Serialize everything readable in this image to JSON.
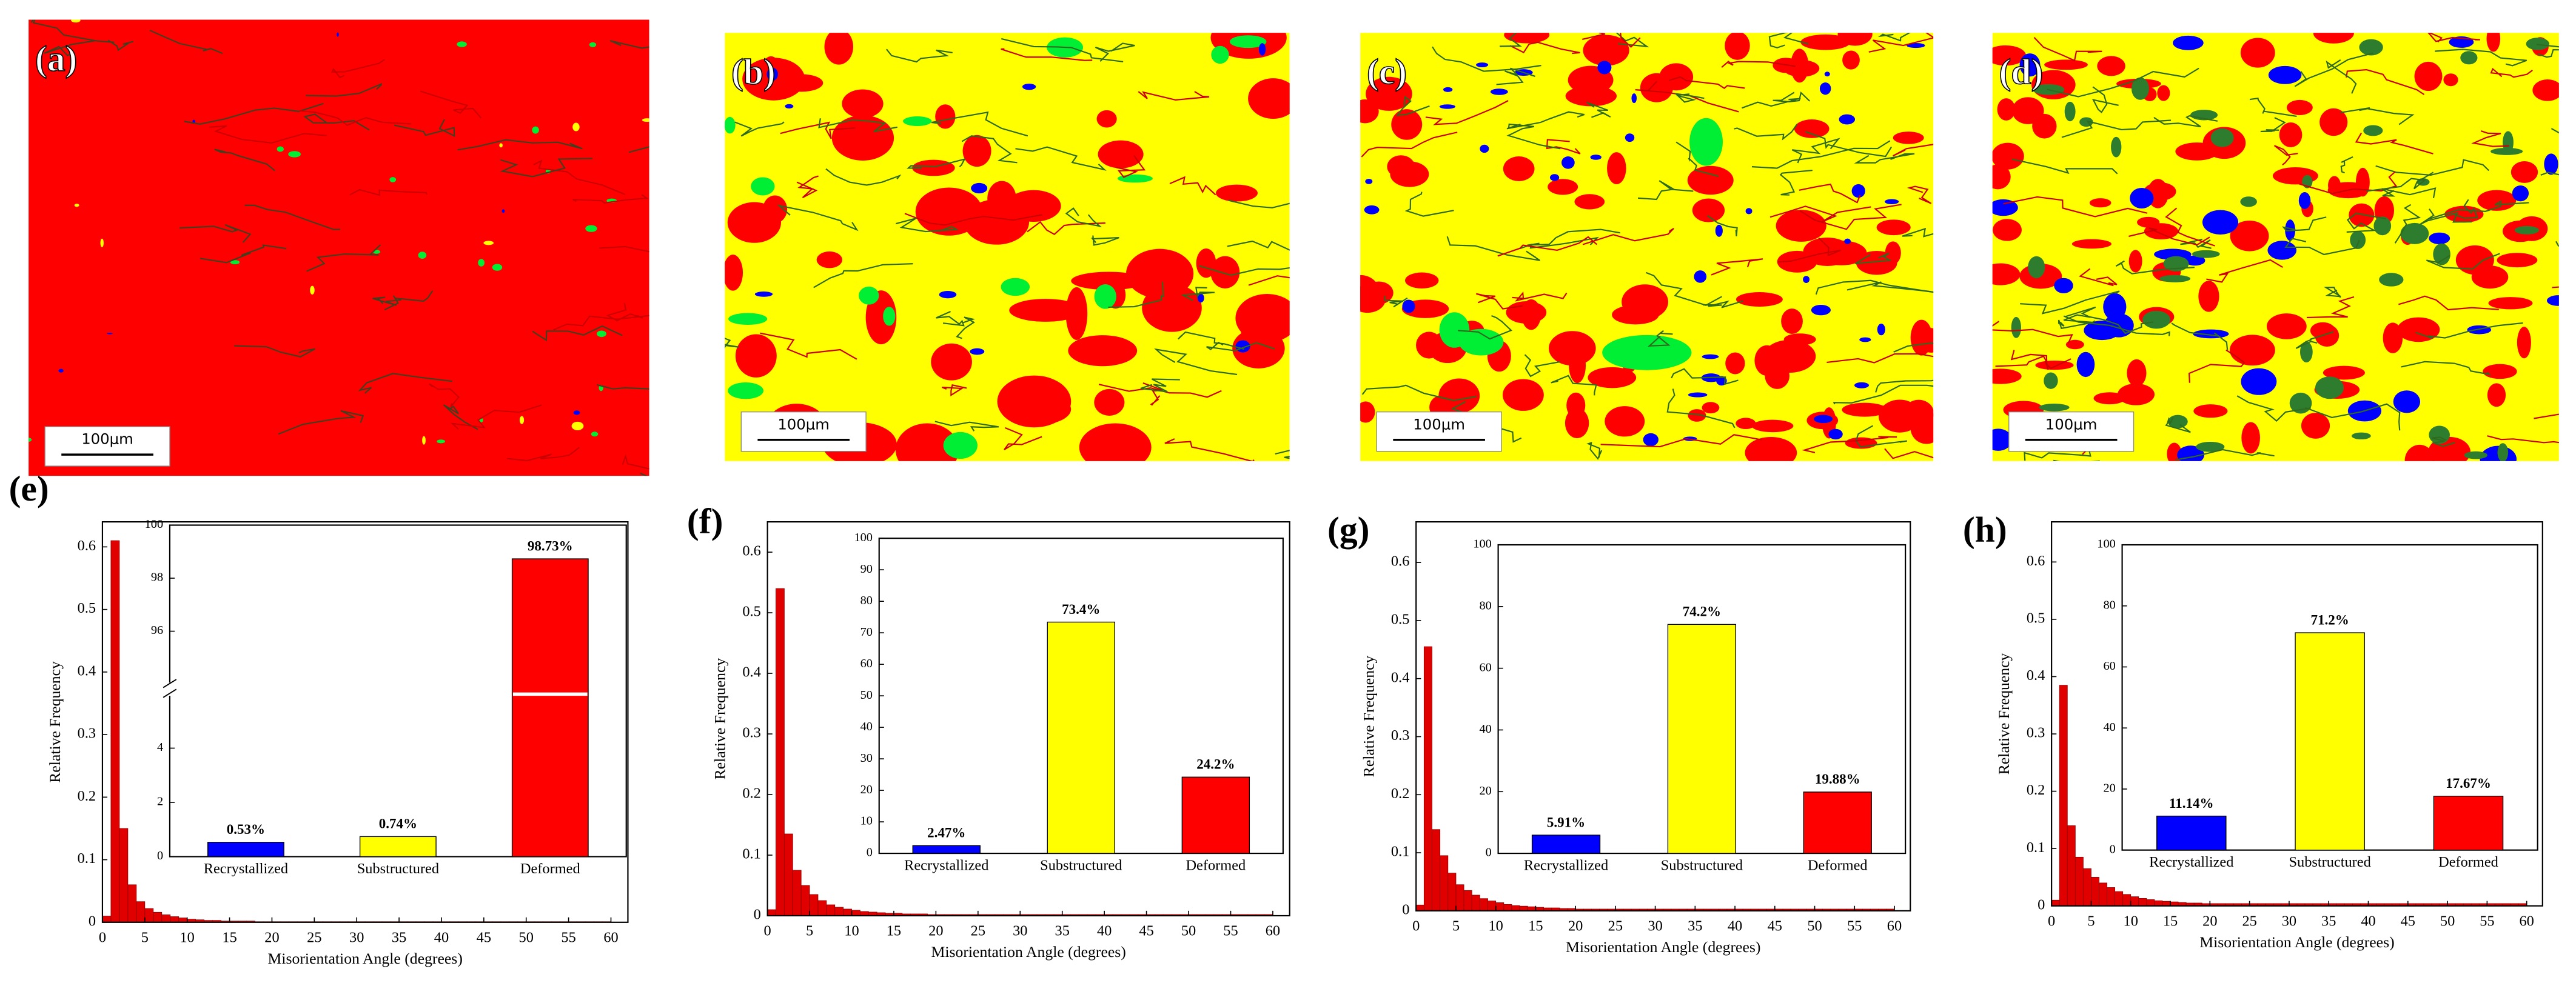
{
  "maps": [
    {
      "label": "(a)",
      "scale_bar": "100μm"
    },
    {
      "label": "(b)",
      "scale_bar": "100μm"
    },
    {
      "label": "(c)",
      "scale_bar": "100μm"
    },
    {
      "label": "(d)",
      "scale_bar": "100μm"
    }
  ],
  "chart_data": [
    {
      "type": "histogram",
      "panel": "(e)",
      "xlabel": "Misorientation Angle (degrees)",
      "ylabel": "Relative Frequency",
      "color": "#e00000",
      "bins": [
        0,
        1,
        2,
        3,
        4,
        5,
        6,
        7,
        8,
        9,
        10,
        11,
        12,
        13,
        14,
        15,
        16,
        17,
        18,
        19,
        20,
        21,
        22,
        23,
        24,
        25,
        26,
        27,
        28,
        29,
        30,
        31,
        32,
        33,
        34,
        35,
        36,
        37,
        38,
        39,
        40,
        41,
        42,
        43,
        44,
        45,
        46,
        47,
        48,
        49,
        50,
        51,
        52,
        53,
        54,
        55,
        56,
        57,
        58,
        59,
        60
      ],
      "values": [
        0.01,
        0.61,
        0.15,
        0.06,
        0.033,
        0.022,
        0.016,
        0.012,
        0.009,
        0.007,
        0.005,
        0.004,
        0.003,
        0.003,
        0.002,
        0.002,
        0.002,
        0.002,
        0.001,
        0.001,
        0.001,
        0.001,
        0.001,
        0.001,
        0.001,
        0.001,
        0.001,
        0.001,
        0.001,
        0.001,
        0.001,
        0.001,
        0.001,
        0.001,
        0.001,
        0.001,
        0.001,
        0.001,
        0.001,
        0.001,
        0.001,
        0.001,
        0.001,
        0.001,
        0.001,
        0.001,
        0.001,
        0.001,
        0.001,
        0.001,
        0.001,
        0.001,
        0.001,
        0.001,
        0.001,
        0.001,
        0.001,
        0.001,
        0.001,
        0.001
      ],
      "xlim": [
        0,
        62
      ],
      "ylim": [
        0,
        0.64
      ],
      "xticks": [
        0,
        5,
        10,
        15,
        20,
        25,
        30,
        35,
        40,
        45,
        50,
        55,
        60
      ],
      "yticks": [
        0,
        0.1,
        0.2,
        0.3,
        0.4,
        0.5,
        0.6
      ],
      "inset": {
        "type": "bar",
        "categories": [
          "Recrystallized",
          "Substructured",
          "Deformed"
        ],
        "values": [
          0.53,
          0.74,
          98.73
        ],
        "value_labels": [
          "0.53%",
          "0.74%",
          "98.73%"
        ],
        "colors": [
          "#0000ff",
          "#ffff00",
          "#ff0000"
        ],
        "ylim": [
          0,
          100
        ],
        "ybreak": [
          5.5,
          94.5
        ],
        "yticks": [
          0,
          2,
          4,
          96,
          98,
          100
        ]
      }
    },
    {
      "type": "histogram",
      "panel": "(f)",
      "xlabel": "Misorientation Angle (degrees)",
      "ylabel": "Relative Frequency",
      "color": "#e00000",
      "bins": [
        0,
        1,
        2,
        3,
        4,
        5,
        6,
        7,
        8,
        9,
        10,
        11,
        12,
        13,
        14,
        15,
        16,
        17,
        18,
        19,
        20,
        21,
        22,
        23,
        24,
        25,
        26,
        27,
        28,
        29,
        30,
        31,
        32,
        33,
        34,
        35,
        36,
        37,
        38,
        39,
        40,
        41,
        42,
        43,
        44,
        45,
        46,
        47,
        48,
        49,
        50,
        51,
        52,
        53,
        54,
        55,
        56,
        57,
        58,
        59,
        60
      ],
      "values": [
        0.01,
        0.54,
        0.135,
        0.075,
        0.05,
        0.035,
        0.025,
        0.018,
        0.014,
        0.011,
        0.009,
        0.007,
        0.006,
        0.005,
        0.004,
        0.004,
        0.003,
        0.003,
        0.003,
        0.002,
        0.002,
        0.002,
        0.002,
        0.002,
        0.002,
        0.002,
        0.002,
        0.002,
        0.002,
        0.002,
        0.002,
        0.002,
        0.002,
        0.002,
        0.002,
        0.002,
        0.002,
        0.002,
        0.002,
        0.002,
        0.002,
        0.002,
        0.002,
        0.002,
        0.002,
        0.002,
        0.002,
        0.002,
        0.002,
        0.002,
        0.002,
        0.002,
        0.002,
        0.002,
        0.002,
        0.002,
        0.002,
        0.002,
        0.002,
        0.002
      ],
      "xlim": [
        0,
        62
      ],
      "ylim": [
        0,
        0.65
      ],
      "xticks": [
        0,
        5,
        10,
        15,
        20,
        25,
        30,
        35,
        40,
        45,
        50,
        55,
        60
      ],
      "yticks": [
        0,
        0.1,
        0.2,
        0.3,
        0.4,
        0.5,
        0.6
      ],
      "inset": {
        "type": "bar",
        "categories": [
          "Recrystallized",
          "Substructured",
          "Deformed"
        ],
        "values": [
          2.47,
          73.4,
          24.2
        ],
        "value_labels": [
          "2.47%",
          "73.4%",
          "24.2%"
        ],
        "colors": [
          "#0000ff",
          "#ffff00",
          "#ff0000"
        ],
        "ylim": [
          0,
          100
        ],
        "yticks": [
          0,
          10,
          20,
          30,
          40,
          50,
          60,
          70,
          80,
          90,
          100
        ]
      }
    },
    {
      "type": "histogram",
      "panel": "(g)",
      "xlabel": "Misorientation Angle (degrees)",
      "ylabel": "Relative Frequency",
      "color": "#e00000",
      "bins": [
        0,
        1,
        2,
        3,
        4,
        5,
        6,
        7,
        8,
        9,
        10,
        11,
        12,
        13,
        14,
        15,
        16,
        17,
        18,
        19,
        20,
        21,
        22,
        23,
        24,
        25,
        26,
        27,
        28,
        29,
        30,
        31,
        32,
        33,
        34,
        35,
        36,
        37,
        38,
        39,
        40,
        41,
        42,
        43,
        44,
        45,
        46,
        47,
        48,
        49,
        50,
        51,
        52,
        53,
        54,
        55,
        56,
        57,
        58,
        59,
        60
      ],
      "values": [
        0.01,
        0.455,
        0.14,
        0.095,
        0.065,
        0.045,
        0.035,
        0.027,
        0.021,
        0.017,
        0.014,
        0.011,
        0.009,
        0.008,
        0.007,
        0.006,
        0.005,
        0.005,
        0.004,
        0.004,
        0.003,
        0.003,
        0.003,
        0.003,
        0.003,
        0.003,
        0.003,
        0.003,
        0.003,
        0.003,
        0.003,
        0.003,
        0.003,
        0.003,
        0.003,
        0.003,
        0.003,
        0.003,
        0.003,
        0.003,
        0.003,
        0.003,
        0.003,
        0.003,
        0.003,
        0.003,
        0.003,
        0.003,
        0.003,
        0.003,
        0.003,
        0.003,
        0.003,
        0.003,
        0.003,
        0.003,
        0.003,
        0.003,
        0.003,
        0.003
      ],
      "xlim": [
        0,
        62
      ],
      "ylim": [
        0,
        0.67
      ],
      "xticks": [
        0,
        5,
        10,
        15,
        20,
        25,
        30,
        35,
        40,
        45,
        50,
        55,
        60
      ],
      "yticks": [
        0,
        0.1,
        0.2,
        0.3,
        0.4,
        0.5,
        0.6
      ],
      "inset": {
        "type": "bar",
        "categories": [
          "Recrystallized",
          "Substructured",
          "Deformed"
        ],
        "values": [
          5.91,
          74.2,
          19.88
        ],
        "value_labels": [
          "5.91%",
          "74.2%",
          "19.88%"
        ],
        "colors": [
          "#0000ff",
          "#ffff00",
          "#ff0000"
        ],
        "ylim": [
          0,
          100
        ],
        "yticks": [
          0,
          20,
          40,
          60,
          80,
          100
        ]
      }
    },
    {
      "type": "histogram",
      "panel": "(h)",
      "xlabel": "Misorientation Angle (degrees)",
      "ylabel": "Relative Frequency",
      "color": "#e00000",
      "bins": [
        0,
        1,
        2,
        3,
        4,
        5,
        6,
        7,
        8,
        9,
        10,
        11,
        12,
        13,
        14,
        15,
        16,
        17,
        18,
        19,
        20,
        21,
        22,
        23,
        24,
        25,
        26,
        27,
        28,
        29,
        30,
        31,
        32,
        33,
        34,
        35,
        36,
        37,
        38,
        39,
        40,
        41,
        42,
        43,
        44,
        45,
        46,
        47,
        48,
        49,
        50,
        51,
        52,
        53,
        54,
        55,
        56,
        57,
        58,
        59,
        60
      ],
      "values": [
        0.01,
        0.385,
        0.14,
        0.085,
        0.065,
        0.05,
        0.04,
        0.032,
        0.025,
        0.02,
        0.016,
        0.013,
        0.011,
        0.009,
        0.008,
        0.007,
        0.006,
        0.005,
        0.005,
        0.004,
        0.004,
        0.004,
        0.004,
        0.004,
        0.004,
        0.004,
        0.004,
        0.004,
        0.004,
        0.004,
        0.004,
        0.004,
        0.004,
        0.004,
        0.004,
        0.004,
        0.004,
        0.004,
        0.004,
        0.004,
        0.004,
        0.004,
        0.004,
        0.004,
        0.004,
        0.004,
        0.004,
        0.004,
        0.004,
        0.004,
        0.004,
        0.004,
        0.004,
        0.004,
        0.004,
        0.004,
        0.004,
        0.004,
        0.004,
        0.004
      ],
      "xlim": [
        0,
        62
      ],
      "ylim": [
        0,
        0.67
      ],
      "xticks": [
        0,
        5,
        10,
        15,
        20,
        25,
        30,
        35,
        40,
        45,
        50,
        55,
        60
      ],
      "yticks": [
        0,
        0.1,
        0.2,
        0.3,
        0.4,
        0.5,
        0.6
      ],
      "inset": {
        "type": "bar",
        "categories": [
          "Recrystallized",
          "Substructured",
          "Deformed"
        ],
        "values": [
          11.14,
          71.2,
          17.67
        ],
        "value_labels": [
          "11.14%",
          "71.2%",
          "17.67%"
        ],
        "colors": [
          "#0000ff",
          "#ffff00",
          "#ff0000"
        ],
        "ylim": [
          0,
          100
        ],
        "yticks": [
          0,
          20,
          40,
          60,
          80,
          100
        ]
      }
    }
  ]
}
